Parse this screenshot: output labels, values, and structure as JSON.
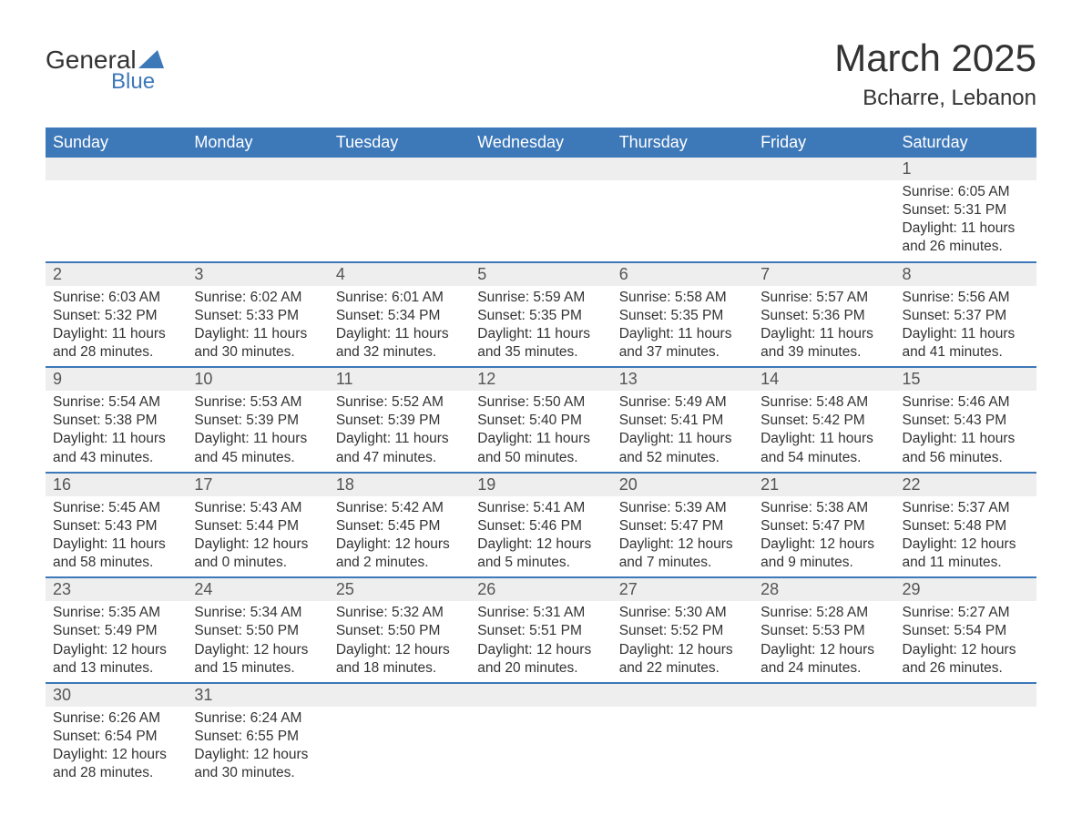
{
  "logo": {
    "text_top": "General",
    "text_bottom": "Blue",
    "accent_color": "#3d78b9"
  },
  "title": "March 2025",
  "location": "Bcharre, Lebanon",
  "colors": {
    "header_bg": "#3d78b9",
    "header_text": "#ffffff",
    "daynum_bg": "#eeeeee",
    "row_divider": "#3d78b9",
    "body_text": "#333333"
  },
  "typography": {
    "title_fontsize": 42,
    "location_fontsize": 24,
    "header_fontsize": 18,
    "cell_fontsize": 15.5
  },
  "day_headers": [
    "Sunday",
    "Monday",
    "Tuesday",
    "Wednesday",
    "Thursday",
    "Friday",
    "Saturday"
  ],
  "weeks": [
    [
      null,
      null,
      null,
      null,
      null,
      null,
      {
        "n": "1",
        "sunrise": "6:05 AM",
        "sunset": "5:31 PM",
        "dl1": "11 hours",
        "dl2": "and 26 minutes."
      }
    ],
    [
      {
        "n": "2",
        "sunrise": "6:03 AM",
        "sunset": "5:32 PM",
        "dl1": "11 hours",
        "dl2": "and 28 minutes."
      },
      {
        "n": "3",
        "sunrise": "6:02 AM",
        "sunset": "5:33 PM",
        "dl1": "11 hours",
        "dl2": "and 30 minutes."
      },
      {
        "n": "4",
        "sunrise": "6:01 AM",
        "sunset": "5:34 PM",
        "dl1": "11 hours",
        "dl2": "and 32 minutes."
      },
      {
        "n": "5",
        "sunrise": "5:59 AM",
        "sunset": "5:35 PM",
        "dl1": "11 hours",
        "dl2": "and 35 minutes."
      },
      {
        "n": "6",
        "sunrise": "5:58 AM",
        "sunset": "5:35 PM",
        "dl1": "11 hours",
        "dl2": "and 37 minutes."
      },
      {
        "n": "7",
        "sunrise": "5:57 AM",
        "sunset": "5:36 PM",
        "dl1": "11 hours",
        "dl2": "and 39 minutes."
      },
      {
        "n": "8",
        "sunrise": "5:56 AM",
        "sunset": "5:37 PM",
        "dl1": "11 hours",
        "dl2": "and 41 minutes."
      }
    ],
    [
      {
        "n": "9",
        "sunrise": "5:54 AM",
        "sunset": "5:38 PM",
        "dl1": "11 hours",
        "dl2": "and 43 minutes."
      },
      {
        "n": "10",
        "sunrise": "5:53 AM",
        "sunset": "5:39 PM",
        "dl1": "11 hours",
        "dl2": "and 45 minutes."
      },
      {
        "n": "11",
        "sunrise": "5:52 AM",
        "sunset": "5:39 PM",
        "dl1": "11 hours",
        "dl2": "and 47 minutes."
      },
      {
        "n": "12",
        "sunrise": "5:50 AM",
        "sunset": "5:40 PM",
        "dl1": "11 hours",
        "dl2": "and 50 minutes."
      },
      {
        "n": "13",
        "sunrise": "5:49 AM",
        "sunset": "5:41 PM",
        "dl1": "11 hours",
        "dl2": "and 52 minutes."
      },
      {
        "n": "14",
        "sunrise": "5:48 AM",
        "sunset": "5:42 PM",
        "dl1": "11 hours",
        "dl2": "and 54 minutes."
      },
      {
        "n": "15",
        "sunrise": "5:46 AM",
        "sunset": "5:43 PM",
        "dl1": "11 hours",
        "dl2": "and 56 minutes."
      }
    ],
    [
      {
        "n": "16",
        "sunrise": "5:45 AM",
        "sunset": "5:43 PM",
        "dl1": "11 hours",
        "dl2": "and 58 minutes."
      },
      {
        "n": "17",
        "sunrise": "5:43 AM",
        "sunset": "5:44 PM",
        "dl1": "12 hours",
        "dl2": "and 0 minutes."
      },
      {
        "n": "18",
        "sunrise": "5:42 AM",
        "sunset": "5:45 PM",
        "dl1": "12 hours",
        "dl2": "and 2 minutes."
      },
      {
        "n": "19",
        "sunrise": "5:41 AM",
        "sunset": "5:46 PM",
        "dl1": "12 hours",
        "dl2": "and 5 minutes."
      },
      {
        "n": "20",
        "sunrise": "5:39 AM",
        "sunset": "5:47 PM",
        "dl1": "12 hours",
        "dl2": "and 7 minutes."
      },
      {
        "n": "21",
        "sunrise": "5:38 AM",
        "sunset": "5:47 PM",
        "dl1": "12 hours",
        "dl2": "and 9 minutes."
      },
      {
        "n": "22",
        "sunrise": "5:37 AM",
        "sunset": "5:48 PM",
        "dl1": "12 hours",
        "dl2": "and 11 minutes."
      }
    ],
    [
      {
        "n": "23",
        "sunrise": "5:35 AM",
        "sunset": "5:49 PM",
        "dl1": "12 hours",
        "dl2": "and 13 minutes."
      },
      {
        "n": "24",
        "sunrise": "5:34 AM",
        "sunset": "5:50 PM",
        "dl1": "12 hours",
        "dl2": "and 15 minutes."
      },
      {
        "n": "25",
        "sunrise": "5:32 AM",
        "sunset": "5:50 PM",
        "dl1": "12 hours",
        "dl2": "and 18 minutes."
      },
      {
        "n": "26",
        "sunrise": "5:31 AM",
        "sunset": "5:51 PM",
        "dl1": "12 hours",
        "dl2": "and 20 minutes."
      },
      {
        "n": "27",
        "sunrise": "5:30 AM",
        "sunset": "5:52 PM",
        "dl1": "12 hours",
        "dl2": "and 22 minutes."
      },
      {
        "n": "28",
        "sunrise": "5:28 AM",
        "sunset": "5:53 PM",
        "dl1": "12 hours",
        "dl2": "and 24 minutes."
      },
      {
        "n": "29",
        "sunrise": "5:27 AM",
        "sunset": "5:54 PM",
        "dl1": "12 hours",
        "dl2": "and 26 minutes."
      }
    ],
    [
      {
        "n": "30",
        "sunrise": "6:26 AM",
        "sunset": "6:54 PM",
        "dl1": "12 hours",
        "dl2": "and 28 minutes."
      },
      {
        "n": "31",
        "sunrise": "6:24 AM",
        "sunset": "6:55 PM",
        "dl1": "12 hours",
        "dl2": "and 30 minutes."
      },
      null,
      null,
      null,
      null,
      null
    ]
  ],
  "labels": {
    "sunrise": "Sunrise: ",
    "sunset": "Sunset: ",
    "daylight": "Daylight: "
  }
}
